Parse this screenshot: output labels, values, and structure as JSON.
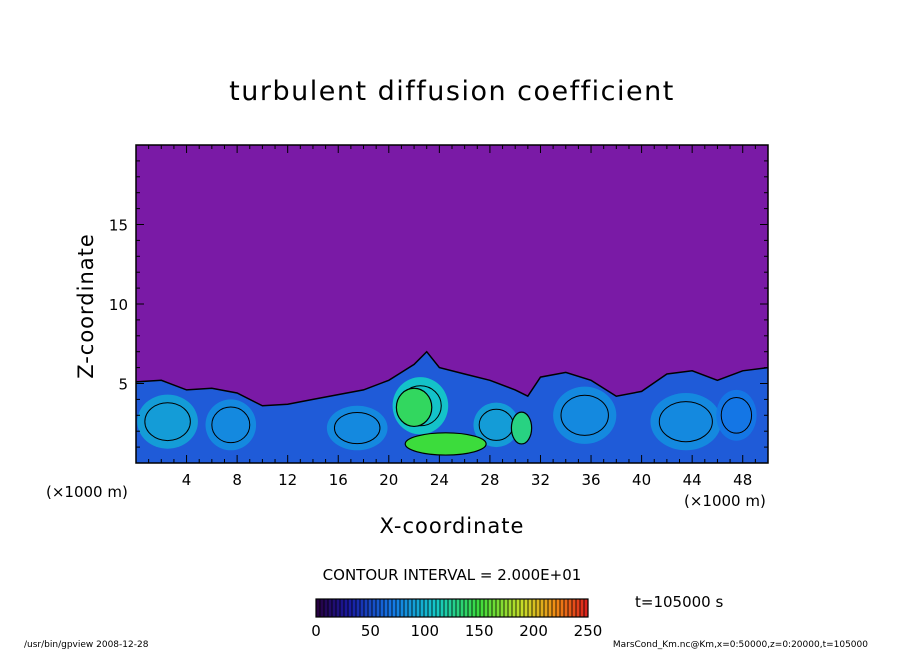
{
  "chart_data": {
    "type": "heatmap",
    "title": "turbulent diffusion coefficient",
    "xlabel": "X-coordinate",
    "ylabel": "Z-coordinate",
    "x_unit_label": "(×1000 m)",
    "xlim": [
      0,
      50
    ],
    "ylim": [
      0,
      20
    ],
    "xticks": [
      4,
      8,
      12,
      16,
      20,
      24,
      28,
      32,
      36,
      40,
      44,
      48
    ],
    "yticks": [
      5,
      10,
      15
    ],
    "contour_interval_text": "CONTOUR INTERVAL = 2.000E+01",
    "colorbar": {
      "range": [
        0,
        250
      ],
      "ticks": [
        0,
        50,
        100,
        150,
        200,
        250
      ]
    },
    "time_label": "t=105000 s",
    "boundary_layer_top": [
      [
        0,
        5.1
      ],
      [
        2,
        5.2
      ],
      [
        4,
        4.6
      ],
      [
        6,
        4.7
      ],
      [
        8,
        4.4
      ],
      [
        10,
        3.6
      ],
      [
        12,
        3.7
      ],
      [
        14,
        4.0
      ],
      [
        16,
        4.3
      ],
      [
        18,
        4.6
      ],
      [
        20,
        5.2
      ],
      [
        21,
        5.7
      ],
      [
        22,
        6.2
      ],
      [
        23,
        7.0
      ],
      [
        24,
        6.0
      ],
      [
        26,
        5.6
      ],
      [
        28,
        5.2
      ],
      [
        30,
        4.6
      ],
      [
        31,
        4.2
      ],
      [
        32,
        5.4
      ],
      [
        34,
        5.7
      ],
      [
        36,
        5.2
      ],
      [
        38,
        4.2
      ],
      [
        40,
        4.5
      ],
      [
        42,
        5.6
      ],
      [
        44,
        5.8
      ],
      [
        46,
        5.2
      ],
      [
        48,
        5.8
      ],
      [
        50,
        6.0
      ]
    ],
    "mid_intensity_regions": [
      {
        "xc": 2.5,
        "zc": 2.6,
        "rx": 2.4,
        "rz": 1.7,
        "value": 90
      },
      {
        "xc": 7.5,
        "zc": 2.4,
        "rx": 2.0,
        "rz": 1.6,
        "value": 80
      },
      {
        "xc": 17.5,
        "zc": 2.2,
        "rx": 2.4,
        "rz": 1.4,
        "value": 80
      },
      {
        "xc": 22.5,
        "zc": 3.6,
        "rx": 2.2,
        "rz": 1.8,
        "value": 110
      },
      {
        "xc": 28.5,
        "zc": 2.4,
        "rx": 1.8,
        "rz": 1.4,
        "value": 90
      },
      {
        "xc": 35.5,
        "zc": 3.0,
        "rx": 2.5,
        "rz": 1.8,
        "value": 80
      },
      {
        "xc": 43.5,
        "zc": 2.6,
        "rx": 2.8,
        "rz": 1.8,
        "value": 80
      },
      {
        "xc": 47.5,
        "zc": 3.0,
        "rx": 1.6,
        "rz": 1.6,
        "value": 70
      }
    ],
    "high_intensity_regions": [
      {
        "xc": 24.5,
        "zc": 1.2,
        "rx": 3.2,
        "rz": 0.7,
        "value": 150
      },
      {
        "xc": 22.0,
        "zc": 3.5,
        "rx": 1.4,
        "rz": 1.2,
        "value": 140
      },
      {
        "xc": 30.5,
        "zc": 2.2,
        "rx": 0.8,
        "rz": 1.0,
        "value": 130
      }
    ]
  },
  "footer": {
    "left": "/usr/bin/gpview  2008-12-28",
    "right": "MarsCond_Km.nc@Km,x=0:50000,z=0:20000,t=105000"
  }
}
